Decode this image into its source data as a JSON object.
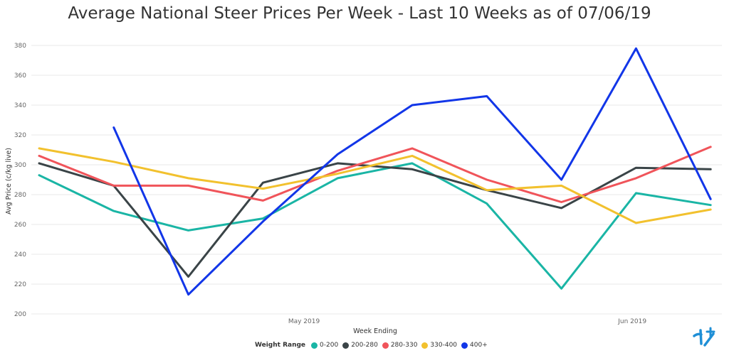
{
  "chart_data": {
    "type": "line",
    "title": "Average National Steer Prices Per Week - Last 10 Weeks as of 07/06/19",
    "xlabel": "Week Ending",
    "ylabel": "Avg Price (c/kg live)",
    "ylim": [
      200,
      390
    ],
    "yticks": [
      200,
      220,
      240,
      260,
      280,
      300,
      320,
      340,
      360,
      380
    ],
    "x_tick_labels": [
      {
        "label": "May 2019",
        "week_index": 3.55
      },
      {
        "label": "Jun 2019",
        "week_index": 7.95
      }
    ],
    "grid": "horizontal",
    "legend_placement": "bottom",
    "legend_title": "Weight Range",
    "series": [
      {
        "name": "0-200",
        "color": "#1ab5a5",
        "values": [
          293,
          269,
          256,
          264,
          291,
          301,
          274,
          217,
          281,
          273
        ]
      },
      {
        "name": "200-280",
        "color": "#3a4447",
        "values": [
          301,
          286,
          225,
          288,
          301,
          297,
          283,
          271,
          298,
          297
        ]
      },
      {
        "name": "280-330",
        "color": "#f0545a",
        "values": [
          306,
          286,
          286,
          276,
          296,
          311,
          290,
          275,
          291,
          312
        ]
      },
      {
        "name": "330-400",
        "color": "#f2c12e",
        "values": [
          311,
          302,
          291,
          284,
          294,
          306,
          283,
          286,
          261,
          270
        ]
      },
      {
        "name": "400+",
        "color": "#1236e8",
        "values": [
          null,
          325,
          213,
          262,
          307,
          340,
          346,
          290,
          378,
          277
        ]
      }
    ]
  },
  "logo_icon": "tick-plus-logo-icon"
}
